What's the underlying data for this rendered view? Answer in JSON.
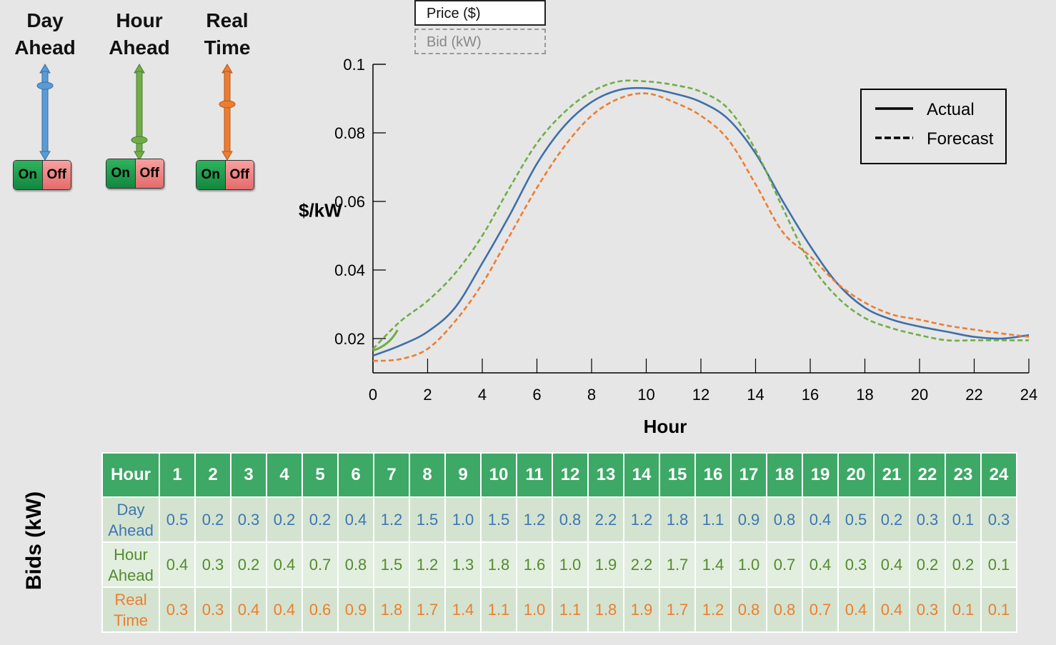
{
  "controls": [
    {
      "title_line1": "Day",
      "title_line2": "Ahead",
      "color": "#5b9bd5",
      "on_label": "On",
      "off_label": "Off",
      "handle": "top"
    },
    {
      "title_line1": "Hour",
      "title_line2": "Ahead",
      "color": "#70ad47",
      "on_label": "On",
      "off_label": "Off",
      "handle": "bottom"
    },
    {
      "title_line1": "Real",
      "title_line2": "Time",
      "color": "#ed7d31",
      "on_label": "On",
      "off_label": "Off",
      "handle": "middle"
    }
  ],
  "tabs": {
    "active": "Price ($)",
    "inactive": "Bid (kW)"
  },
  "colors": {
    "actual": "#3e6fa8",
    "day_ahead": "#3e76b0",
    "hour_ahead": "#70ad47",
    "real_time": "#ed7d31",
    "header": "#3ea866"
  },
  "chart_data": {
    "type": "line",
    "xlabel": "Hour",
    "ylabel": "$/kW",
    "xlim": [
      0,
      24
    ],
    "ylim": [
      0.01,
      0.1
    ],
    "xticks": [
      0,
      2,
      4,
      6,
      8,
      10,
      12,
      14,
      16,
      18,
      20,
      22,
      24
    ],
    "yticks": [
      0.02,
      0.04,
      0.06,
      0.08,
      0.1
    ],
    "ytick_labels": [
      "0.02",
      "0.04",
      "0.06",
      "0.08",
      "0.1"
    ],
    "legend": [
      {
        "label": "Actual",
        "style": "solid"
      },
      {
        "label": "Forecast",
        "style": "dashed"
      }
    ],
    "legend_position": "top-right",
    "series": [
      {
        "name": "Actual",
        "style": "solid",
        "color": "#3e6fa8",
        "x": [
          0,
          1,
          2,
          3,
          4,
          5,
          6,
          7,
          8,
          9,
          10,
          11,
          12,
          13,
          14,
          15,
          16,
          17,
          18,
          19,
          20,
          21,
          22,
          23,
          24
        ],
        "y": [
          0.015,
          0.018,
          0.022,
          0.029,
          0.042,
          0.056,
          0.071,
          0.082,
          0.089,
          0.0925,
          0.093,
          0.0915,
          0.089,
          0.084,
          0.074,
          0.06,
          0.047,
          0.036,
          0.029,
          0.0255,
          0.0235,
          0.022,
          0.0205,
          0.02,
          0.021
        ]
      },
      {
        "name": "Forecast Hour Ahead",
        "style": "dashed",
        "color": "#70ad47",
        "x": [
          0,
          1,
          2,
          3,
          4,
          5,
          6,
          7,
          8,
          9,
          10,
          11,
          12,
          13,
          14,
          15,
          16,
          17,
          18,
          19,
          20,
          21,
          22,
          23,
          24
        ],
        "y": [
          0.017,
          0.025,
          0.031,
          0.039,
          0.05,
          0.064,
          0.077,
          0.086,
          0.092,
          0.095,
          0.095,
          0.094,
          0.092,
          0.087,
          0.075,
          0.058,
          0.042,
          0.032,
          0.026,
          0.023,
          0.021,
          0.0195,
          0.0195,
          0.0195,
          0.0195
        ]
      },
      {
        "name": "Forecast Real Time",
        "style": "dashed",
        "color": "#ed7d31",
        "x": [
          0,
          1,
          2,
          3,
          4,
          5,
          6,
          7,
          8,
          9,
          10,
          11,
          12,
          13,
          14,
          15,
          16,
          17,
          18,
          19,
          20,
          21,
          22,
          23,
          24
        ],
        "y": [
          0.0135,
          0.014,
          0.017,
          0.025,
          0.036,
          0.05,
          0.064,
          0.076,
          0.085,
          0.09,
          0.0915,
          0.089,
          0.085,
          0.078,
          0.065,
          0.051,
          0.044,
          0.036,
          0.0305,
          0.027,
          0.0255,
          0.0238,
          0.0226,
          0.0215,
          0.0205
        ]
      }
    ]
  },
  "table": {
    "hour_label": "Hour",
    "title": "Bids (kW)",
    "hours": [
      "1",
      "2",
      "3",
      "4",
      "5",
      "6",
      "7",
      "8",
      "9",
      "10",
      "11",
      "12",
      "13",
      "14",
      "15",
      "16",
      "17",
      "18",
      "19",
      "20",
      "21",
      "22",
      "23",
      "24"
    ],
    "rows": [
      {
        "label1": "Day",
        "label2": "Ahead",
        "cls": "c-da",
        "values": [
          "0.5",
          "0.2",
          "0.3",
          "0.2",
          "0.2",
          "0.4",
          "1.2",
          "1.5",
          "1.0",
          "1.5",
          "1.2",
          "0.8",
          "2.2",
          "1.2",
          "1.8",
          "1.1",
          "0.9",
          "0.8",
          "0.4",
          "0.5",
          "0.2",
          "0.3",
          "0.1",
          "0.3"
        ]
      },
      {
        "label1": "Hour",
        "label2": "Ahead",
        "cls": "c-ha",
        "values": [
          "0.4",
          "0.3",
          "0.2",
          "0.4",
          "0.7",
          "0.8",
          "1.5",
          "1.2",
          "1.3",
          "1.8",
          "1.6",
          "1.0",
          "1.9",
          "2.2",
          "1.7",
          "1.4",
          "1.0",
          "0.7",
          "0.4",
          "0.3",
          "0.4",
          "0.2",
          "0.2",
          "0.1"
        ]
      },
      {
        "label1": "Real",
        "label2": "Time",
        "cls": "c-rt",
        "values": [
          "0.3",
          "0.3",
          "0.4",
          "0.4",
          "0.6",
          "0.9",
          "1.8",
          "1.7",
          "1.4",
          "1.1",
          "1.0",
          "1.1",
          "1.8",
          "1.9",
          "1.7",
          "1.2",
          "0.8",
          "0.8",
          "0.7",
          "0.4",
          "0.4",
          "0.3",
          "0.1",
          "0.1"
        ]
      }
    ]
  }
}
